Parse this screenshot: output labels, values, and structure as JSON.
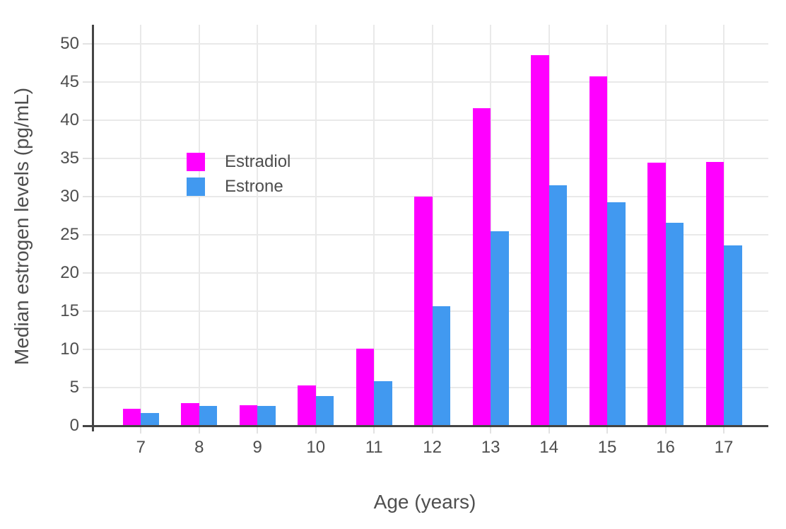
{
  "chart_data": {
    "type": "bar",
    "title": "",
    "xlabel": "Age (years)",
    "ylabel": "Median estrogen levels (pg/mL)",
    "categories": [
      7,
      8,
      9,
      10,
      11,
      12,
      13,
      14,
      15,
      16,
      17
    ],
    "series": [
      {
        "name": "Estradiol",
        "color": "#ff00ff",
        "values": [
          2.2,
          3.0,
          2.7,
          5.3,
          10.1,
          30.0,
          41.6,
          48.5,
          45.8,
          34.5,
          34.6
        ]
      },
      {
        "name": "Estrone",
        "color": "#4199f0",
        "values": [
          1.7,
          2.6,
          2.6,
          3.9,
          5.8,
          15.7,
          25.5,
          31.5,
          29.3,
          26.6,
          23.6
        ]
      }
    ],
    "y_ticks": [
      0,
      5,
      10,
      15,
      20,
      25,
      30,
      35,
      40,
      45,
      50
    ],
    "ylim": [
      0,
      52.5
    ],
    "grid": "on",
    "legend_position": "inside-top-left",
    "bar_group_gap_ratio": 0.38
  }
}
